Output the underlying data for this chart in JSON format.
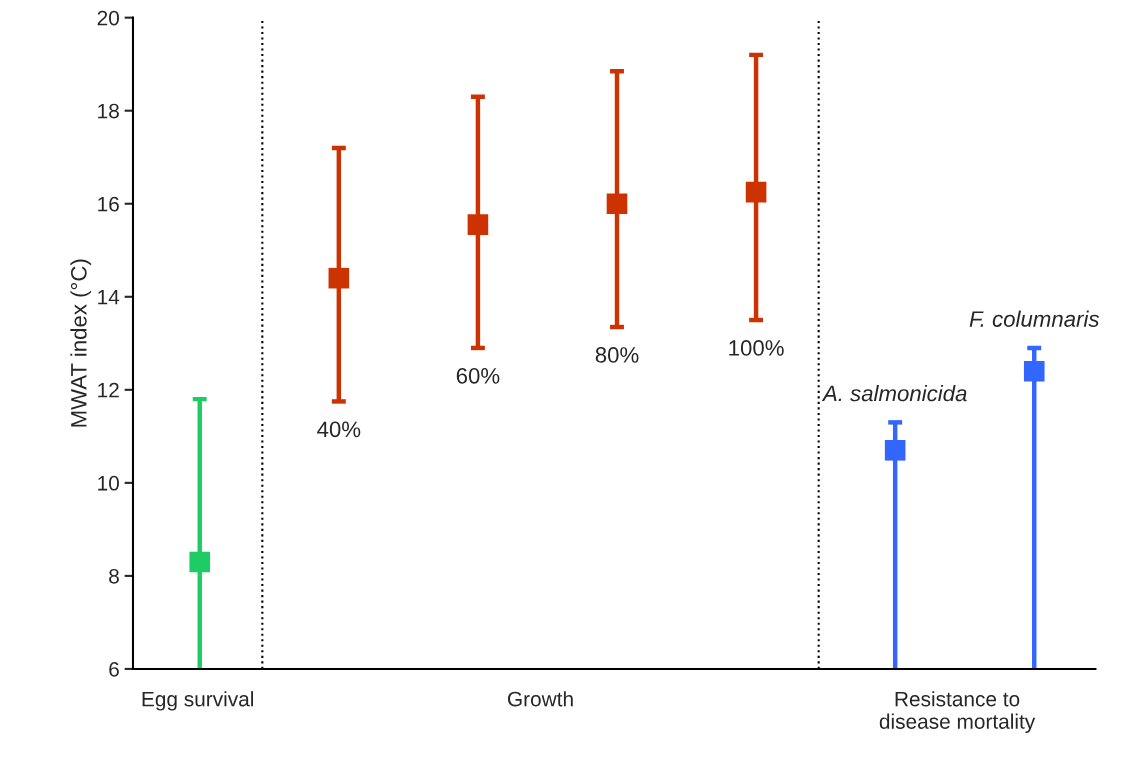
{
  "chart_data": {
    "type": "scatter",
    "ylabel": "MWAT index (°C)",
    "categories": [
      null,
      "40%",
      "60%",
      "80%",
      "100%",
      "A. salmonicida",
      "F. columnaris"
    ],
    "ylim": [
      6,
      20
    ],
    "yticks": [
      6,
      8,
      10,
      12,
      14,
      16,
      18,
      20
    ],
    "marker": "square",
    "grid": false,
    "legend": false,
    "series": [
      {
        "color": "#1ecc66",
        "values": [
          8.3,
          null,
          null,
          null,
          null,
          null,
          null
        ],
        "errors": [
          [
            6,
            11.8
          ],
          null,
          null,
          null,
          null,
          null,
          null
        ]
      },
      {
        "color": "#cc3300",
        "values": [
          null,
          14.4,
          15.55,
          16.0,
          16.25,
          null,
          null
        ],
        "errors": [
          null,
          [
            11.75,
            17.2
          ],
          [
            12.9,
            18.3
          ],
          [
            13.35,
            18.85
          ],
          [
            13.5,
            19.2
          ],
          null,
          null
        ]
      },
      {
        "color": "#3366ff",
        "values": [
          null,
          null,
          null,
          null,
          null,
          10.7,
          12.4
        ],
        "errors": [
          null,
          null,
          null,
          null,
          null,
          [
            6,
            11.3
          ],
          [
            6,
            12.9
          ]
        ]
      }
    ],
    "annotations": [
      "Egg survival",
      "Growth",
      "Resistance to\ndisease mortality"
    ]
  }
}
